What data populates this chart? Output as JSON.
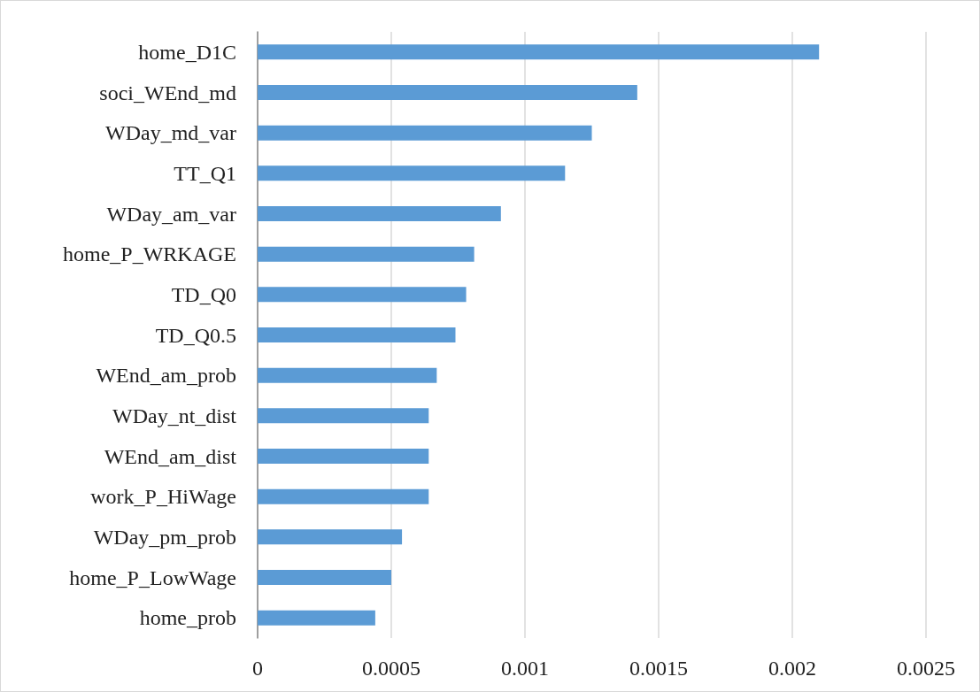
{
  "chart_data": {
    "type": "bar",
    "orientation": "horizontal",
    "categories": [
      "home_D1C",
      "soci_WEnd_md",
      "WDay_md_var",
      "TT_Q1",
      "WDay_am_var",
      "home_P_WRKAGE",
      "TD_Q0",
      "TD_Q0.5",
      "WEnd_am_prob",
      "WDay_nt_dist",
      "WEnd_am_dist",
      "work_P_HiWage",
      "WDay_pm_prob",
      "home_P_LowWage",
      "home_prob"
    ],
    "values": [
      0.0021,
      0.00142,
      0.00125,
      0.00115,
      0.00091,
      0.00081,
      0.00078,
      0.00074,
      0.00067,
      0.00064,
      0.00064,
      0.00064,
      0.00054,
      0.0005,
      0.00044
    ],
    "color": "#5b9bd5",
    "xlim": [
      0,
      0.0025
    ],
    "xticks": [
      0,
      0.0005,
      0.001,
      0.0015,
      0.002,
      0.0025
    ],
    "grid": "x"
  }
}
